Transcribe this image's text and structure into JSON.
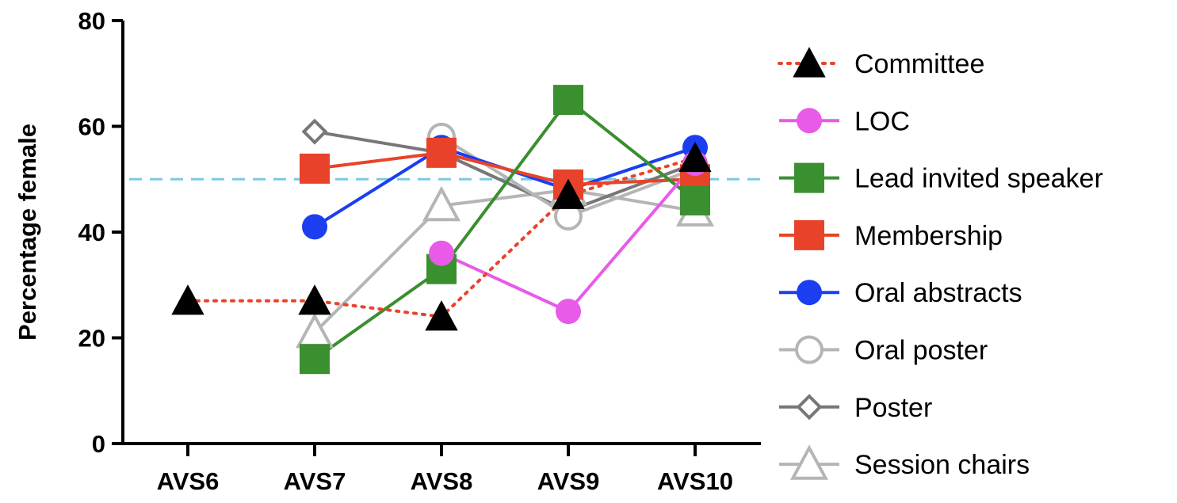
{
  "chart_data": {
    "type": "line",
    "title": "",
    "xlabel": "",
    "ylabel": "Percentage female",
    "categories": [
      "AVS6",
      "AVS7",
      "AVS8",
      "AVS9",
      "AVS10"
    ],
    "ylim": [
      0,
      80
    ],
    "yticks": [
      0,
      20,
      40,
      60,
      80
    ],
    "reference_line": {
      "y": 50,
      "color": "#7ec8e3",
      "style": "dashed"
    },
    "grid": false,
    "legend_position": "right",
    "series": [
      {
        "name": "Committee",
        "values": [
          27,
          27,
          24,
          47,
          54
        ],
        "color": "#e8432a",
        "line": "dotted",
        "marker": "triangle",
        "marker_color": "#000000",
        "filled": true
      },
      {
        "name": "LOC",
        "values": [
          null,
          null,
          36,
          25,
          53
        ],
        "color": "#e85ae8",
        "line": "solid",
        "marker": "circle",
        "marker_color": "#e85ae8",
        "filled": true
      },
      {
        "name": "Lead invited speaker",
        "values": [
          null,
          16,
          33,
          65,
          46
        ],
        "color": "#3a8f2f",
        "line": "solid",
        "marker": "square",
        "marker_color": "#3a8f2f",
        "filled": true
      },
      {
        "name": "Membership",
        "values": [
          null,
          52,
          55,
          49,
          50
        ],
        "color": "#e8432a",
        "line": "solid",
        "marker": "square",
        "marker_color": "#e8432a",
        "filled": true
      },
      {
        "name": "Oral abstracts",
        "values": [
          null,
          41,
          56,
          48,
          56
        ],
        "color": "#1a3ef0",
        "line": "solid",
        "marker": "circle",
        "marker_color": "#1a3ef0",
        "filled": true
      },
      {
        "name": "Oral poster",
        "values": [
          null,
          null,
          58,
          43,
          52
        ],
        "color": "#b5b5b5",
        "line": "solid",
        "marker": "circle",
        "marker_color": "#b5b5b5",
        "filled": false
      },
      {
        "name": "Poster",
        "values": [
          null,
          59,
          55,
          44,
          53
        ],
        "color": "#777777",
        "line": "solid",
        "marker": "diamond",
        "marker_color": "#777777",
        "filled": false
      },
      {
        "name": "Session chairs",
        "values": [
          null,
          21,
          45,
          48,
          44
        ],
        "color": "#b5b5b5",
        "line": "solid",
        "marker": "triangle",
        "marker_color": "#b5b5b5",
        "filled": false
      }
    ]
  }
}
